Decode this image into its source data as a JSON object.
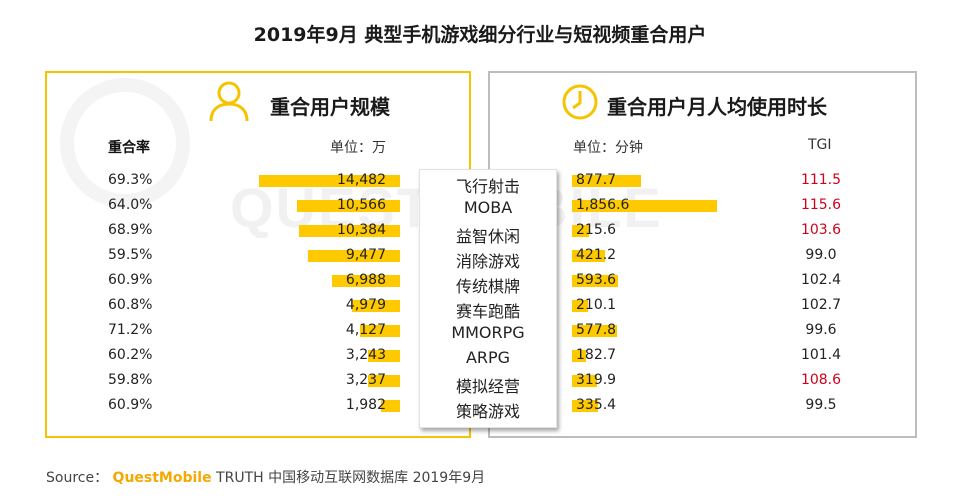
{
  "title": "2019年9月 典型手机游戏细分行业与短视频重合用户",
  "watermark": "QUESTMOBILE",
  "left_panel": {
    "heading": "重合用户规模",
    "col_rate_header": "重合率",
    "col_unit_header": "单位：万"
  },
  "right_panel": {
    "heading": "重合用户月人均使用时长",
    "col_unit_header": "单位：分钟",
    "col_tgi_header": "TGI"
  },
  "colors": {
    "bar": "#ffc900",
    "highlight_tgi": "#d0021b",
    "normal_tgi": "#222222",
    "left_border": "#f5c400",
    "right_border": "#bdbdbd"
  },
  "chart_data": [
    {
      "type": "bar",
      "title": "重合用户规模",
      "ylabel": "单位：万",
      "categories": [
        "飞行射击",
        "MOBA",
        "益智休闲",
        "消除游戏",
        "传统棋牌",
        "赛车跑酷",
        "MMORPG",
        "ARPG",
        "模拟经营",
        "策略游戏"
      ],
      "values": [
        14482,
        10566,
        10384,
        9477,
        6988,
        4979,
        4127,
        3243,
        3237,
        1982
      ],
      "value_labels": [
        "14,482",
        "10,566",
        "10,384",
        "9,477",
        "6,988",
        "4,979",
        "4,127",
        "3,243",
        "3,237",
        "1,982"
      ],
      "overlap_rate": [
        "69.3%",
        "64.0%",
        "68.9%",
        "59.5%",
        "60.9%",
        "60.8%",
        "71.2%",
        "60.2%",
        "59.8%",
        "60.9%"
      ]
    },
    {
      "type": "bar",
      "title": "重合用户月人均使用时长",
      "ylabel": "单位：分钟",
      "categories": [
        "飞行射击",
        "MOBA",
        "益智休闲",
        "消除游戏",
        "传统棋牌",
        "赛车跑酷",
        "MMORPG",
        "ARPG",
        "模拟经营",
        "策略游戏"
      ],
      "values": [
        877.7,
        1856.6,
        215.6,
        421.2,
        593.6,
        210.1,
        577.8,
        182.7,
        319.9,
        335.4
      ],
      "value_labels": [
        "877.7",
        "1,856.6",
        "215.6",
        "421.2",
        "593.6",
        "210.1",
        "577.8",
        "182.7",
        "319.9",
        "335.4"
      ],
      "tgi": [
        "111.5",
        "115.6",
        "103.6",
        "99.0",
        "102.4",
        "102.7",
        "99.6",
        "101.4",
        "108.6",
        "99.5"
      ],
      "tgi_highlight": [
        true,
        true,
        true,
        false,
        false,
        false,
        false,
        false,
        true,
        false
      ]
    }
  ],
  "source": {
    "prefix": "Source：",
    "brand": "QuestMobile",
    "rest": "TRUTH 中国移动互联网数据库 2019年9月"
  }
}
